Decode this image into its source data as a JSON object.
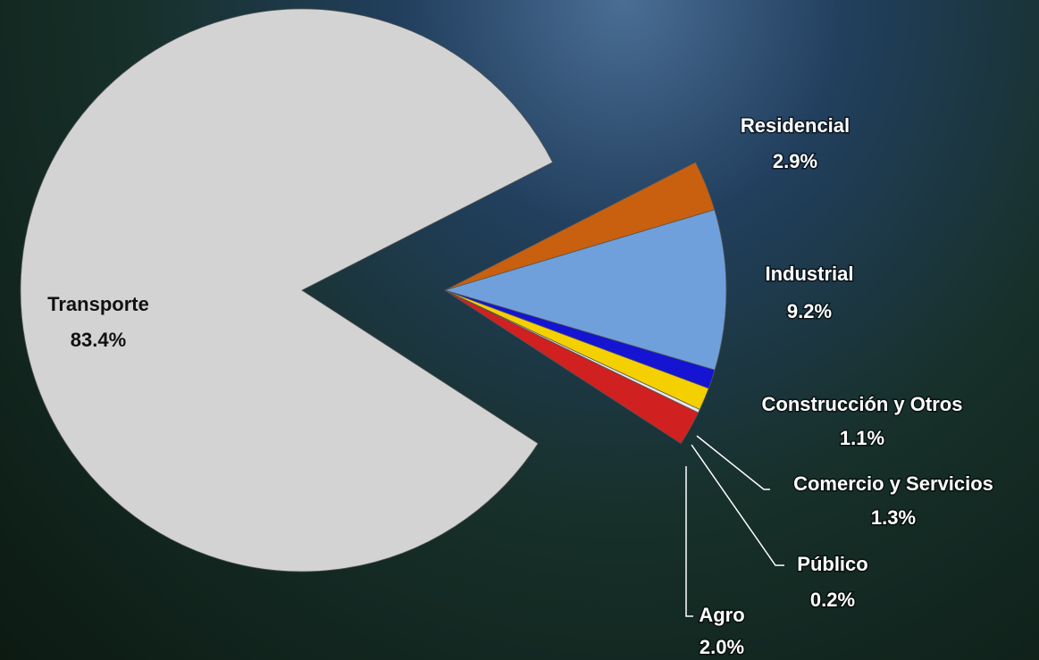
{
  "chart_data": {
    "type": "pie",
    "categories": [
      "Transporte",
      "Residencial",
      "Industrial",
      "Construcción y Otros",
      "Comercio y Servicios",
      "Público",
      "Agro"
    ],
    "values": [
      83.4,
      2.9,
      9.2,
      1.1,
      1.3,
      0.2,
      2.0
    ],
    "value_labels": [
      "83.4%",
      "2.9%",
      "9.2%",
      "1.1%",
      "1.3%",
      "0.2%",
      "2.0%"
    ],
    "colors": [
      "#d3d3d3",
      "#c8600f",
      "#6fa0dc",
      "#1414d2",
      "#f5d000",
      "#e8e8e8",
      "#d02020"
    ]
  }
}
